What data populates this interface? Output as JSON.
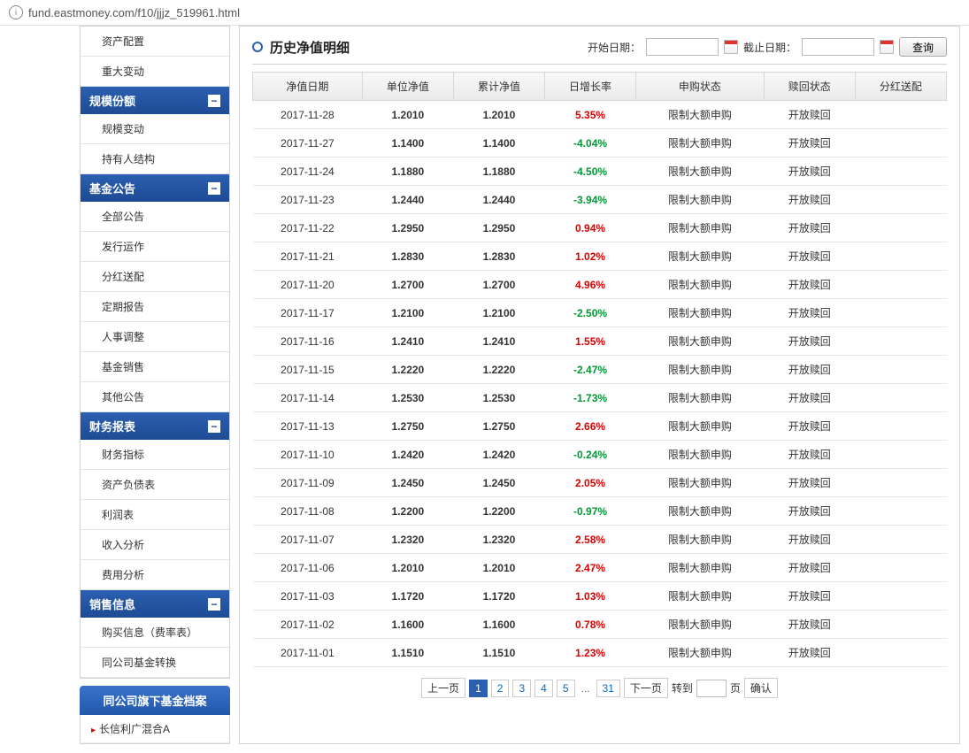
{
  "url": "fund.eastmoney.com/f10/jjjz_519961.html",
  "sidebar": {
    "top_items": [
      "资产配置",
      "重大变动"
    ],
    "sections": [
      {
        "title": "规模份额",
        "items": [
          "规模变动",
          "持有人结构"
        ]
      },
      {
        "title": "基金公告",
        "items": [
          "全部公告",
          "发行运作",
          "分红送配",
          "定期报告",
          "人事调整",
          "基金销售",
          "其他公告"
        ]
      },
      {
        "title": "财务报表",
        "items": [
          "财务指标",
          "资产负债表",
          "利润表",
          "收入分析",
          "费用分析"
        ]
      },
      {
        "title": "销售信息",
        "items": [
          "购买信息（费率表）",
          "同公司基金转换"
        ]
      }
    ],
    "sub_banner": "同公司旗下基金档案",
    "sub_items": [
      "长信利广混合A"
    ]
  },
  "panel": {
    "title": "历史净值明细",
    "start_label": "开始日期：",
    "end_label": "截止日期：",
    "query_btn": "查询"
  },
  "table": {
    "headers": [
      "净值日期",
      "单位净值",
      "累计净值",
      "日增长率",
      "申购状态",
      "赎回状态",
      "分红送配"
    ],
    "rows": [
      {
        "date": "2017-11-28",
        "nav": "1.2010",
        "cum": "1.2010",
        "rate": "5.35%",
        "pos": true,
        "buy": "限制大额申购",
        "sell": "开放赎回",
        "div": ""
      },
      {
        "date": "2017-11-27",
        "nav": "1.1400",
        "cum": "1.1400",
        "rate": "-4.04%",
        "pos": false,
        "buy": "限制大额申购",
        "sell": "开放赎回",
        "div": ""
      },
      {
        "date": "2017-11-24",
        "nav": "1.1880",
        "cum": "1.1880",
        "rate": "-4.50%",
        "pos": false,
        "buy": "限制大额申购",
        "sell": "开放赎回",
        "div": ""
      },
      {
        "date": "2017-11-23",
        "nav": "1.2440",
        "cum": "1.2440",
        "rate": "-3.94%",
        "pos": false,
        "buy": "限制大额申购",
        "sell": "开放赎回",
        "div": ""
      },
      {
        "date": "2017-11-22",
        "nav": "1.2950",
        "cum": "1.2950",
        "rate": "0.94%",
        "pos": true,
        "buy": "限制大额申购",
        "sell": "开放赎回",
        "div": ""
      },
      {
        "date": "2017-11-21",
        "nav": "1.2830",
        "cum": "1.2830",
        "rate": "1.02%",
        "pos": true,
        "buy": "限制大额申购",
        "sell": "开放赎回",
        "div": ""
      },
      {
        "date": "2017-11-20",
        "nav": "1.2700",
        "cum": "1.2700",
        "rate": "4.96%",
        "pos": true,
        "buy": "限制大额申购",
        "sell": "开放赎回",
        "div": ""
      },
      {
        "date": "2017-11-17",
        "nav": "1.2100",
        "cum": "1.2100",
        "rate": "-2.50%",
        "pos": false,
        "buy": "限制大额申购",
        "sell": "开放赎回",
        "div": ""
      },
      {
        "date": "2017-11-16",
        "nav": "1.2410",
        "cum": "1.2410",
        "rate": "1.55%",
        "pos": true,
        "buy": "限制大额申购",
        "sell": "开放赎回",
        "div": ""
      },
      {
        "date": "2017-11-15",
        "nav": "1.2220",
        "cum": "1.2220",
        "rate": "-2.47%",
        "pos": false,
        "buy": "限制大额申购",
        "sell": "开放赎回",
        "div": ""
      },
      {
        "date": "2017-11-14",
        "nav": "1.2530",
        "cum": "1.2530",
        "rate": "-1.73%",
        "pos": false,
        "buy": "限制大额申购",
        "sell": "开放赎回",
        "div": ""
      },
      {
        "date": "2017-11-13",
        "nav": "1.2750",
        "cum": "1.2750",
        "rate": "2.66%",
        "pos": true,
        "buy": "限制大额申购",
        "sell": "开放赎回",
        "div": ""
      },
      {
        "date": "2017-11-10",
        "nav": "1.2420",
        "cum": "1.2420",
        "rate": "-0.24%",
        "pos": false,
        "buy": "限制大额申购",
        "sell": "开放赎回",
        "div": ""
      },
      {
        "date": "2017-11-09",
        "nav": "1.2450",
        "cum": "1.2450",
        "rate": "2.05%",
        "pos": true,
        "buy": "限制大额申购",
        "sell": "开放赎回",
        "div": ""
      },
      {
        "date": "2017-11-08",
        "nav": "1.2200",
        "cum": "1.2200",
        "rate": "-0.97%",
        "pos": false,
        "buy": "限制大额申购",
        "sell": "开放赎回",
        "div": ""
      },
      {
        "date": "2017-11-07",
        "nav": "1.2320",
        "cum": "1.2320",
        "rate": "2.58%",
        "pos": true,
        "buy": "限制大额申购",
        "sell": "开放赎回",
        "div": ""
      },
      {
        "date": "2017-11-06",
        "nav": "1.2010",
        "cum": "1.2010",
        "rate": "2.47%",
        "pos": true,
        "buy": "限制大额申购",
        "sell": "开放赎回",
        "div": ""
      },
      {
        "date": "2017-11-03",
        "nav": "1.1720",
        "cum": "1.1720",
        "rate": "1.03%",
        "pos": true,
        "buy": "限制大额申购",
        "sell": "开放赎回",
        "div": ""
      },
      {
        "date": "2017-11-02",
        "nav": "1.1600",
        "cum": "1.1600",
        "rate": "0.78%",
        "pos": true,
        "buy": "限制大额申购",
        "sell": "开放赎回",
        "div": ""
      },
      {
        "date": "2017-11-01",
        "nav": "1.1510",
        "cum": "1.1510",
        "rate": "1.23%",
        "pos": true,
        "buy": "限制大额申购",
        "sell": "开放赎回",
        "div": ""
      }
    ]
  },
  "pager": {
    "prev": "上一页",
    "pages": [
      "1",
      "2",
      "3",
      "4",
      "5"
    ],
    "last": "31",
    "next": "下一页",
    "goto_label": "转到",
    "page_suffix": "页",
    "confirm": "确认",
    "active": "1"
  }
}
